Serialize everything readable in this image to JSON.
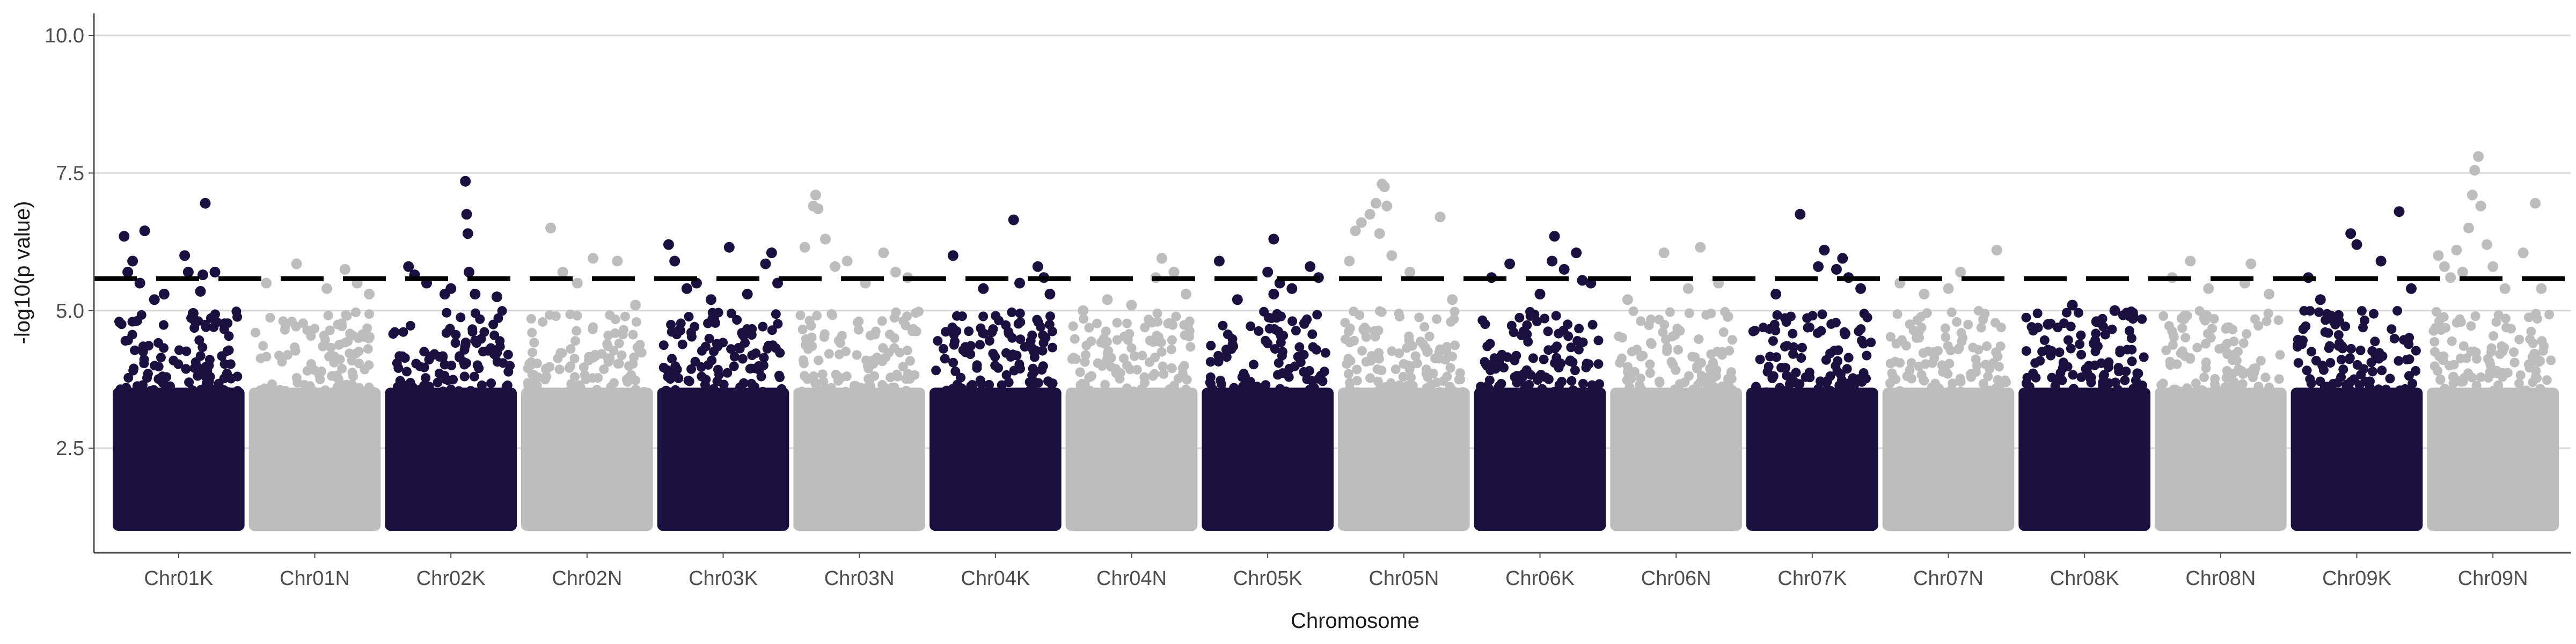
{
  "chart_data": {
    "type": "scatter",
    "title": "",
    "xlabel": "Chromosome",
    "ylabel": "-log10(p value)",
    "ylim": [
      0.6,
      10.4
    ],
    "yticks": [
      2.5,
      5.0,
      7.5,
      10.0
    ],
    "ytick_labels": [
      "2.5",
      "5.0",
      "7.5",
      "10.0"
    ],
    "grid": "horizontal major gridlines",
    "legend": "none",
    "threshold": 5.58,
    "colors": {
      "dark": "#1b1040",
      "light": "#bdbdbd",
      "grid": "#d9d9d9",
      "axis": "#4d4d4d",
      "threshold": "#000000"
    },
    "categories": [
      "Chr01K",
      "Chr01N",
      "Chr02K",
      "Chr02N",
      "Chr03K",
      "Chr03N",
      "Chr04K",
      "Chr04N",
      "Chr05K",
      "Chr05N",
      "Chr06K",
      "Chr06N",
      "Chr07K",
      "Chr07N",
      "Chr08K",
      "Chr08N",
      "Chr09K",
      "Chr09N"
    ],
    "series": [
      {
        "values": [
          [
            0.05,
            6.35
          ],
          [
            0.08,
            5.7
          ],
          [
            0.12,
            5.9
          ],
          [
            0.18,
            5.5
          ],
          [
            0.22,
            6.45
          ],
          [
            0.3,
            5.2
          ],
          [
            0.38,
            5.3
          ],
          [
            0.55,
            6.0
          ],
          [
            0.58,
            5.7
          ],
          [
            0.62,
            4.95
          ],
          [
            0.68,
            5.35
          ],
          [
            0.7,
            5.65
          ],
          [
            0.72,
            6.95
          ],
          [
            0.8,
            5.7
          ]
        ]
      },
      {
        "values": [
          [
            0.1,
            5.5
          ],
          [
            0.35,
            5.85
          ],
          [
            0.6,
            5.4
          ],
          [
            0.75,
            5.75
          ],
          [
            0.85,
            5.5
          ],
          [
            0.95,
            5.3
          ]
        ]
      },
      {
        "values": [
          [
            0.15,
            5.8
          ],
          [
            0.2,
            5.65
          ],
          [
            0.3,
            5.5
          ],
          [
            0.45,
            5.3
          ],
          [
            0.5,
            5.4
          ],
          [
            0.62,
            7.35
          ],
          [
            0.63,
            6.75
          ],
          [
            0.64,
            6.4
          ],
          [
            0.65,
            5.7
          ],
          [
            0.7,
            5.3
          ],
          [
            0.88,
            5.25
          ]
        ]
      },
      {
        "values": [
          [
            0.2,
            6.5
          ],
          [
            0.3,
            5.7
          ],
          [
            0.42,
            5.5
          ],
          [
            0.55,
            5.95
          ],
          [
            0.75,
            5.9
          ],
          [
            0.9,
            5.1
          ]
        ]
      },
      {
        "values": [
          [
            0.05,
            6.2
          ],
          [
            0.1,
            5.9
          ],
          [
            0.2,
            5.4
          ],
          [
            0.28,
            5.5
          ],
          [
            0.4,
            5.2
          ],
          [
            0.55,
            6.15
          ],
          [
            0.7,
            5.3
          ],
          [
            0.85,
            5.85
          ],
          [
            0.9,
            6.05
          ],
          [
            0.95,
            5.5
          ]
        ]
      },
      {
        "values": [
          [
            0.05,
            6.15
          ],
          [
            0.12,
            6.9
          ],
          [
            0.14,
            7.1
          ],
          [
            0.16,
            6.85
          ],
          [
            0.22,
            6.3
          ],
          [
            0.3,
            5.8
          ],
          [
            0.4,
            5.9
          ],
          [
            0.55,
            5.5
          ],
          [
            0.7,
            6.05
          ],
          [
            0.8,
            5.7
          ],
          [
            0.9,
            5.6
          ]
        ]
      },
      {
        "values": [
          [
            0.15,
            6.0
          ],
          [
            0.4,
            5.4
          ],
          [
            0.65,
            6.65
          ],
          [
            0.7,
            5.5
          ],
          [
            0.85,
            5.8
          ],
          [
            0.9,
            5.6
          ],
          [
            0.95,
            5.3
          ]
        ]
      },
      {
        "values": [
          [
            0.1,
            5.0
          ],
          [
            0.3,
            5.2
          ],
          [
            0.5,
            5.1
          ],
          [
            0.7,
            5.6
          ],
          [
            0.75,
            5.95
          ],
          [
            0.85,
            5.7
          ],
          [
            0.95,
            5.3
          ]
        ]
      },
      {
        "values": [
          [
            0.1,
            5.9
          ],
          [
            0.25,
            5.2
          ],
          [
            0.5,
            5.7
          ],
          [
            0.55,
            5.3
          ],
          [
            0.55,
            6.3
          ],
          [
            0.6,
            5.5
          ],
          [
            0.7,
            5.4
          ],
          [
            0.85,
            5.8
          ],
          [
            0.92,
            5.6
          ]
        ]
      },
      {
        "values": [
          [
            0.05,
            5.9
          ],
          [
            0.1,
            6.45
          ],
          [
            0.15,
            6.6
          ],
          [
            0.22,
            6.75
          ],
          [
            0.27,
            6.95
          ],
          [
            0.3,
            6.4
          ],
          [
            0.32,
            7.3
          ],
          [
            0.34,
            7.25
          ],
          [
            0.36,
            6.9
          ],
          [
            0.4,
            6.0
          ],
          [
            0.55,
            5.7
          ],
          [
            0.8,
            6.7
          ],
          [
            0.9,
            5.2
          ]
        ]
      },
      {
        "values": [
          [
            0.1,
            5.6
          ],
          [
            0.25,
            5.85
          ],
          [
            0.5,
            5.3
          ],
          [
            0.6,
            5.9
          ],
          [
            0.62,
            6.35
          ],
          [
            0.7,
            5.75
          ],
          [
            0.8,
            6.05
          ],
          [
            0.85,
            5.55
          ],
          [
            0.92,
            5.5
          ]
        ]
      },
      {
        "values": [
          [
            0.1,
            5.2
          ],
          [
            0.4,
            6.05
          ],
          [
            0.6,
            5.4
          ],
          [
            0.7,
            6.15
          ],
          [
            0.85,
            5.5
          ]
        ]
      },
      {
        "values": [
          [
            0.2,
            5.3
          ],
          [
            0.4,
            6.75
          ],
          [
            0.55,
            5.8
          ],
          [
            0.6,
            6.1
          ],
          [
            0.7,
            5.75
          ],
          [
            0.75,
            5.95
          ],
          [
            0.8,
            5.6
          ],
          [
            0.9,
            5.4
          ]
        ]
      },
      {
        "values": [
          [
            0.1,
            5.5
          ],
          [
            0.3,
            5.3
          ],
          [
            0.5,
            5.4
          ],
          [
            0.6,
            5.7
          ],
          [
            0.9,
            6.1
          ]
        ]
      },
      {
        "values": [
          [
            0.2,
            4.75
          ],
          [
            0.4,
            5.1
          ],
          [
            0.6,
            4.8
          ],
          [
            0.75,
            5.0
          ],
          [
            0.9,
            4.9
          ]
        ]
      },
      {
        "values": [
          [
            0.1,
            5.6
          ],
          [
            0.25,
            5.9
          ],
          [
            0.4,
            5.4
          ],
          [
            0.7,
            5.5
          ],
          [
            0.75,
            5.85
          ],
          [
            0.9,
            5.3
          ]
        ]
      },
      {
        "values": [
          [
            0.1,
            5.6
          ],
          [
            0.2,
            5.2
          ],
          [
            0.45,
            6.4
          ],
          [
            0.5,
            6.2
          ],
          [
            0.7,
            5.9
          ],
          [
            0.85,
            6.8
          ],
          [
            0.95,
            5.4
          ]
        ]
      },
      {
        "values": [
          [
            0.05,
            6.0
          ],
          [
            0.1,
            5.8
          ],
          [
            0.15,
            5.6
          ],
          [
            0.2,
            6.1
          ],
          [
            0.25,
            5.7
          ],
          [
            0.3,
            6.5
          ],
          [
            0.33,
            7.1
          ],
          [
            0.35,
            7.55
          ],
          [
            0.38,
            7.8
          ],
          [
            0.4,
            6.9
          ],
          [
            0.45,
            6.2
          ],
          [
            0.5,
            5.8
          ],
          [
            0.6,
            5.4
          ],
          [
            0.75,
            6.05
          ],
          [
            0.85,
            6.95
          ],
          [
            0.9,
            5.4
          ]
        ]
      }
    ]
  }
}
